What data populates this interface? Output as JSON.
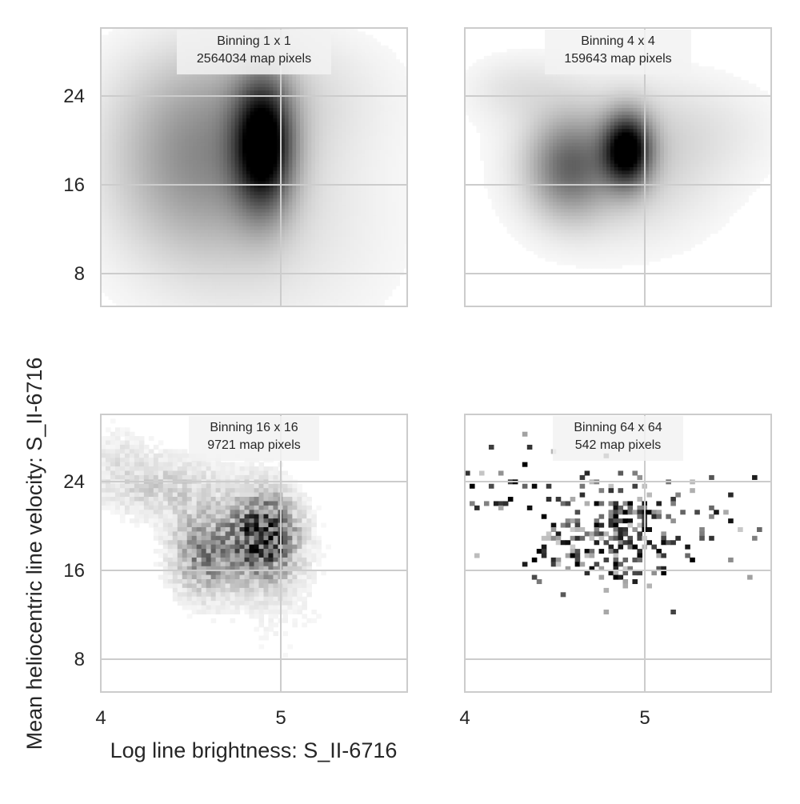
{
  "chart_data": {
    "type": "heatmap",
    "xlabel": "Log line brightness: S_II-6716",
    "ylabel": "Mean heliocentric line velocity: S_II-6716",
    "xlim": [
      4.0,
      5.7
    ],
    "ylim": [
      4.9,
      30.0
    ],
    "xticks": [
      4,
      5
    ],
    "yticks": [
      8,
      16,
      24
    ],
    "grid": true,
    "colormap": "gray_r",
    "colors": {
      "grid": "#cccccc",
      "frame": "#cccccc",
      "text": "#262626",
      "title_box": "#f2f2f2"
    },
    "panels": [
      {
        "title_line1": "Binning 1 x 1",
        "title_line2": "2564034 map pixels",
        "style": "smooth",
        "blobs": [
          {
            "x": 4.9,
            "y": 19.5,
            "sx": 0.11,
            "sy": 4.0,
            "w": 1.0
          },
          {
            "x": 4.55,
            "y": 18.0,
            "sx": 0.32,
            "sy": 5.5,
            "w": 0.35
          },
          {
            "x": 4.9,
            "y": 12.0,
            "sx": 0.5,
            "sy": 7.0,
            "w": 0.08
          },
          {
            "x": 4.85,
            "y": 24.0,
            "sx": 0.45,
            "sy": 4.0,
            "w": 0.12
          }
        ]
      },
      {
        "title_line1": "Binning 4 x 4",
        "title_line2": "159643 map pixels",
        "style": "smooth",
        "blobs": [
          {
            "x": 4.9,
            "y": 19.0,
            "sx": 0.09,
            "sy": 2.2,
            "w": 1.0
          },
          {
            "x": 4.58,
            "y": 17.5,
            "sx": 0.15,
            "sy": 3.0,
            "w": 0.45
          },
          {
            "x": 4.85,
            "y": 18.0,
            "sx": 0.35,
            "sy": 4.5,
            "w": 0.18
          },
          {
            "x": 4.3,
            "y": 24.5,
            "sx": 0.2,
            "sy": 2.0,
            "w": 0.08
          },
          {
            "x": 5.35,
            "y": 21.0,
            "sx": 0.3,
            "sy": 3.0,
            "w": 0.05
          }
        ]
      },
      {
        "title_line1": "Binning 16 x 16",
        "title_line2": "9721 map pixels",
        "style": "grainy",
        "blobs": [
          {
            "x": 4.9,
            "y": 19.0,
            "sx": 0.12,
            "sy": 2.5,
            "w": 1.0
          },
          {
            "x": 4.58,
            "y": 17.5,
            "sx": 0.12,
            "sy": 2.5,
            "w": 0.55
          },
          {
            "x": 4.35,
            "y": 23.5,
            "sx": 0.25,
            "sy": 2.0,
            "w": 0.2
          },
          {
            "x": 4.1,
            "y": 26.5,
            "sx": 0.12,
            "sy": 2.0,
            "w": 0.08
          },
          {
            "x": 5.0,
            "y": 14.0,
            "sx": 0.2,
            "sy": 4.5,
            "w": 0.06
          }
        ]
      },
      {
        "title_line1": "Binning 64 x 64",
        "title_line2": "542 map pixels",
        "style": "sparse",
        "blobs": [
          {
            "x": 4.9,
            "y": 19.5,
            "sx": 0.14,
            "sy": 2.5,
            "w": 1.0
          },
          {
            "x": 4.6,
            "y": 18.0,
            "sx": 0.14,
            "sy": 2.5,
            "w": 0.6
          },
          {
            "x": 4.3,
            "y": 23.5,
            "sx": 0.2,
            "sy": 1.8,
            "w": 0.25
          },
          {
            "x": 5.2,
            "y": 19.5,
            "sx": 0.25,
            "sy": 2.5,
            "w": 0.2
          }
        ]
      }
    ]
  }
}
